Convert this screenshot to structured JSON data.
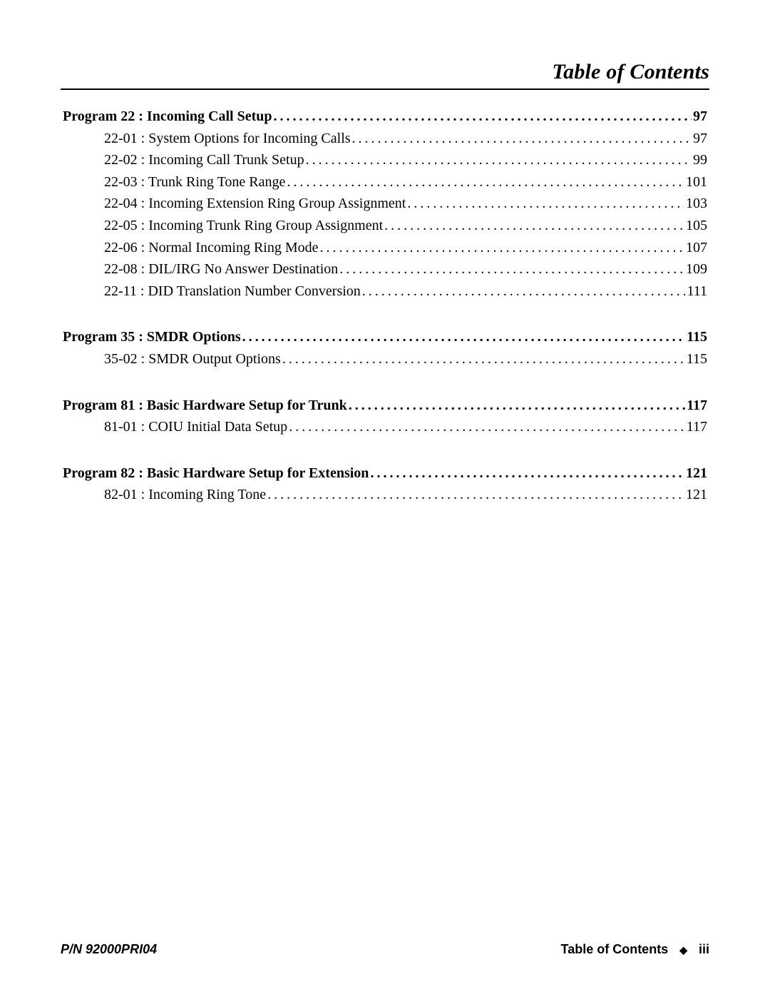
{
  "header": {
    "title": "Table of Contents"
  },
  "sections": [
    {
      "heading": {
        "label": "Program 22 : Incoming Call Setup",
        "page": "97"
      },
      "items": [
        {
          "label": "22-01 : System Options for Incoming Calls",
          "page": "97"
        },
        {
          "label": "22-02 : Incoming Call  Trunk Setup",
          "page": "99"
        },
        {
          "label": "22-03 : Trunk Ring Tone Range",
          "page": "101"
        },
        {
          "label": "22-04 : Incoming Extension Ring Group Assignment",
          "page": "103"
        },
        {
          "label": "22-05 : Incoming Trunk Ring Group Assignment",
          "page": "105"
        },
        {
          "label": "22-06 : Normal Incoming Ring Mode",
          "page": "107"
        },
        {
          "label": "22-08 : DIL/IRG No Answer Destination",
          "page": "109"
        },
        {
          "label": "22-11 : DID Translation Number Conversion",
          "page": "111"
        }
      ]
    },
    {
      "heading": {
        "label": "Program 35 : SMDR Options",
        "page": "115"
      },
      "items": [
        {
          "label": "35-02 : SMDR Output Options",
          "page": "115"
        }
      ]
    },
    {
      "heading": {
        "label": "Program 81 : Basic Hardware Setup for Trunk",
        "page": "117"
      },
      "items": [
        {
          "label": "81-01 : COIU Initial Data Setup",
          "page": "117"
        }
      ]
    },
    {
      "heading": {
        "label": "Program 82 : Basic Hardware Setup for Extension",
        "page": "121"
      },
      "items": [
        {
          "label": "82-01 : Incoming Ring Tone",
          "page": "121"
        }
      ]
    }
  ],
  "footer": {
    "partNumber": "P/N 92000PRI04",
    "label": "Table of Contents",
    "pageRoman": "iii"
  }
}
